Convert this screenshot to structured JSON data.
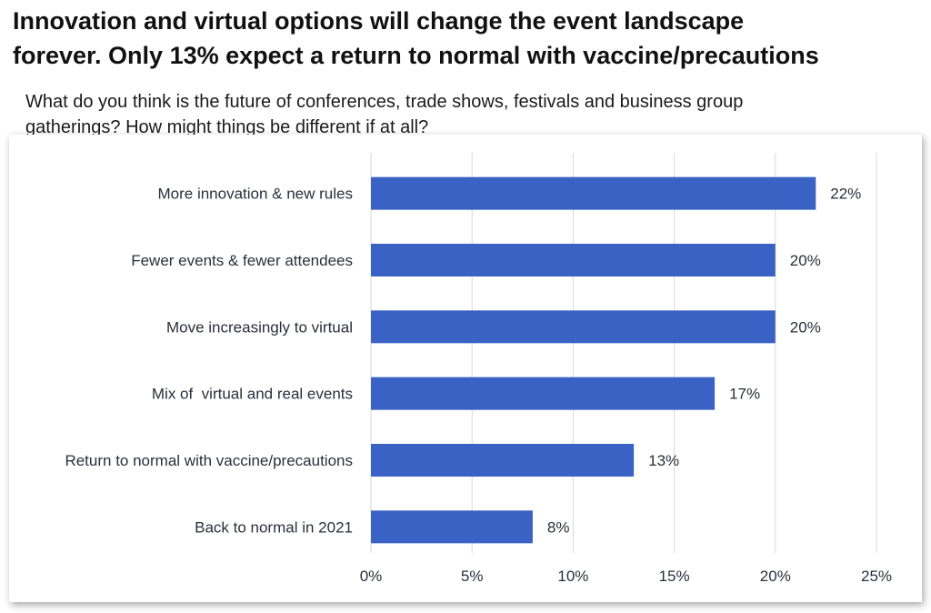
{
  "headline": "Innovation and virtual options will change the event landscape\nforever. Only 13% expect a return to normal with vaccine/precautions",
  "question": "What do you think is the future of conferences, trade shows, festivals and business group\ngatherings? How might things be different if at all?",
  "colors": {
    "bar": "#3a62c4",
    "grid": "#d9d9d9",
    "text": "#2b2f3a"
  },
  "chart_data": {
    "type": "bar",
    "orientation": "horizontal",
    "title": "",
    "xlabel": "",
    "ylabel": "",
    "categories": [
      "More innovation & new rules",
      "Fewer events & fewer attendees",
      "Move increasingly to virtual",
      "Mix of  virtual and real events",
      "Return to normal with vaccine/precautions",
      "Back to normal in 2021"
    ],
    "values": [
      22,
      20,
      20,
      17,
      13,
      8
    ],
    "value_labels": [
      "22%",
      "20%",
      "20%",
      "17%",
      "13%",
      "8%"
    ],
    "xlim": [
      0,
      25
    ],
    "x_ticks": [
      0,
      5,
      10,
      15,
      20,
      25
    ],
    "x_tick_labels": [
      "0%",
      "5%",
      "10%",
      "15%",
      "20%",
      "25%"
    ],
    "grid": true,
    "legend": "none"
  }
}
